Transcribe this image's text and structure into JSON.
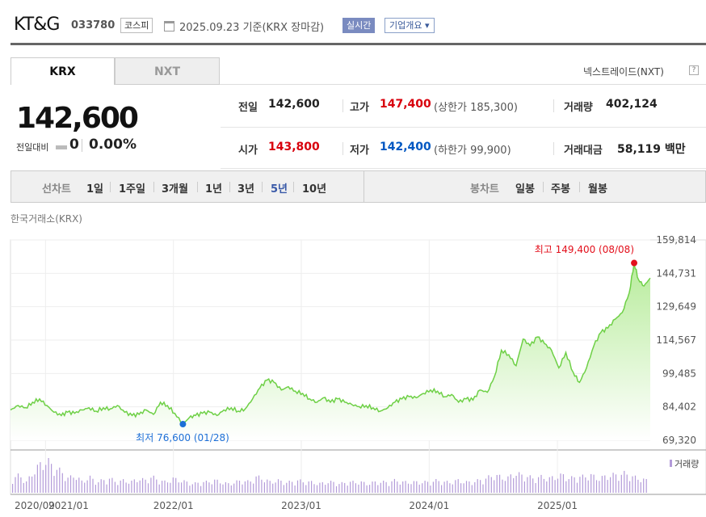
{
  "header": {
    "name": "KT&G",
    "code": "033780",
    "market": "코스피",
    "date": "2025.09.23 기준(KRX 장마감)",
    "realtime": "실시간",
    "corp_info": "기업개요 ▾"
  },
  "tabs": [
    "KRX",
    "NXT"
  ],
  "nxt_link": "넥스트레이드(NXT)",
  "help": "?",
  "price": {
    "current": "142,600",
    "change_label": "전일대비",
    "change": "0",
    "change_pct": "0.00%"
  },
  "stats": {
    "prev_close_label": "전일",
    "prev_close": "142,600",
    "high_label": "고가",
    "high": "147,400",
    "upper_limit": "(상한가 185,300)",
    "volume_label": "거래량",
    "volume": "402,124",
    "open_label": "시가",
    "open": "143,800",
    "low_label": "저가",
    "low": "142,400",
    "lower_limit": "(하한가 99,900)",
    "amount_label": "거래대금",
    "amount": "58,119 백만"
  },
  "toolbar": {
    "line_label": "선차트",
    "line_periods": [
      "1일",
      "1주일",
      "3개월",
      "1년",
      "3년",
      "5년",
      "10년"
    ],
    "selected": "5년",
    "candle_label": "봉차트",
    "candle_periods": [
      "일봉",
      "주봉",
      "월봉"
    ]
  },
  "source": "한국거래소(KRX)",
  "colors": {
    "line": "#6ed046",
    "fill_top": "#b8ec9c",
    "selected": "#3a5aa8",
    "volume_bar": "#b39bd9",
    "high_marker": "#e3101c",
    "low_marker": "#1d6fd6"
  },
  "chart_data": {
    "type": "area",
    "title": "",
    "ylabel": "",
    "ylim": [
      69320,
      159814
    ],
    "y_ticks": [
      "159,814",
      "144,731",
      "129,649",
      "114,567",
      "99,485",
      "84,402",
      "69,320"
    ],
    "x_tick_labels": [
      "2020/09",
      "2021/01",
      "2022/01",
      "2023/01",
      "2024/01",
      "2025/01"
    ],
    "series": [
      {
        "x": [
          "2020-09-23",
          "2020-10-15",
          "2020-11-05",
          "2020-11-25",
          "2020-12-15",
          "2021-01-05",
          "2021-01-25",
          "2021-02-15",
          "2021-03-05",
          "2021-03-25",
          "2021-04-15",
          "2021-05-05",
          "2021-05-25",
          "2021-06-15",
          "2021-07-05",
          "2021-07-25",
          "2021-08-15",
          "2021-09-05",
          "2021-09-25",
          "2021-10-15",
          "2021-11-05",
          "2021-11-25",
          "2021-12-15",
          "2022-01-05",
          "2022-01-28",
          "2022-02-15",
          "2022-03-05",
          "2022-03-25",
          "2022-04-15",
          "2022-05-05",
          "2022-05-25",
          "2022-06-15",
          "2022-07-05",
          "2022-07-25",
          "2022-08-15",
          "2022-09-05",
          "2022-09-25",
          "2022-10-15",
          "2022-11-05",
          "2022-11-25",
          "2022-12-15",
          "2023-01-05",
          "2023-01-25",
          "2023-02-15",
          "2023-03-05",
          "2023-03-25",
          "2023-04-15",
          "2023-05-05",
          "2023-05-25",
          "2023-06-15",
          "2023-07-05",
          "2023-07-25",
          "2023-08-15",
          "2023-09-05",
          "2023-09-25",
          "2023-10-15",
          "2023-11-05",
          "2023-11-25",
          "2023-12-15",
          "2024-01-05",
          "2024-01-25",
          "2024-02-15",
          "2024-03-05",
          "2024-03-25",
          "2024-04-15",
          "2024-05-05",
          "2024-05-25",
          "2024-06-15",
          "2024-07-05",
          "2024-07-25",
          "2024-08-15",
          "2024-09-05",
          "2024-09-25",
          "2024-10-15",
          "2024-11-05",
          "2024-11-25",
          "2024-12-15",
          "2025-01-05",
          "2025-01-25",
          "2025-02-15",
          "2025-03-05",
          "2025-03-25",
          "2025-04-15",
          "2025-05-05",
          "2025-05-25",
          "2025-06-15",
          "2025-07-05",
          "2025-07-25",
          "2025-08-08",
          "2025-08-20",
          "2025-09-05",
          "2025-09-23"
        ],
        "y": [
          83000,
          85000,
          84000,
          86500,
          88000,
          85000,
          82000,
          80500,
          82000,
          81500,
          83000,
          84000,
          82500,
          84000,
          83500,
          85000,
          82000,
          80500,
          81000,
          83000,
          81000,
          86500,
          85000,
          81500,
          76600,
          79500,
          80500,
          81500,
          82000,
          80500,
          83000,
          84000,
          82500,
          83500,
          88000,
          93000,
          96500,
          95500,
          92000,
          93500,
          91500,
          90500,
          88000,
          86500,
          88500,
          86500,
          88000,
          86500,
          85500,
          84500,
          85000,
          84000,
          82500,
          84000,
          86500,
          88000,
          89000,
          88500,
          90500,
          92000,
          91500,
          89000,
          90000,
          86500,
          88000,
          87500,
          92000,
          91000,
          98000,
          110000,
          108000,
          103000,
          115000,
          112000,
          116000,
          113000,
          110000,
          102000,
          109000,
          100000,
          95500,
          102000,
          112000,
          118000,
          120000,
          124000,
          127000,
          136000,
          149400,
          142000,
          139000,
          142600
        ]
      }
    ],
    "annotations": {
      "max": {
        "label": "최고 149,400 (08/08)",
        "date": "2025-08-08",
        "value": 149400
      },
      "min": {
        "label": "최저 76,600 (01/28)",
        "date": "2022-01-28",
        "value": 76600
      }
    },
    "volume_label": "거래량",
    "volume_relative": [
      0.4,
      0.5,
      0.3,
      0.6,
      0.8,
      0.9,
      0.7,
      0.6,
      0.4,
      0.5,
      0.3,
      0.45,
      0.3,
      0.35,
      0.4,
      0.3,
      0.35,
      0.3,
      0.4,
      0.35,
      0.45,
      0.35,
      0.3,
      0.4,
      0.35,
      0.3,
      0.25,
      0.3,
      0.3,
      0.35,
      0.3,
      0.25,
      0.3,
      0.35,
      0.3,
      0.45,
      0.4,
      0.3,
      0.35,
      0.3,
      0.3,
      0.35,
      0.3,
      0.3,
      0.25,
      0.3,
      0.3,
      0.25,
      0.3,
      0.3,
      0.3,
      0.25,
      0.3,
      0.3,
      0.3,
      0.35,
      0.3,
      0.3,
      0.3,
      0.3,
      0.3,
      0.35,
      0.3,
      0.3,
      0.35,
      0.3,
      0.3,
      0.35,
      0.4,
      0.5,
      0.45,
      0.4,
      0.55,
      0.5,
      0.45,
      0.4,
      0.45,
      0.4,
      0.45,
      0.5,
      0.4,
      0.45,
      0.45,
      0.5,
      0.4,
      0.45,
      0.5,
      0.5,
      0.55,
      0.45,
      0.4,
      0.35
    ]
  }
}
